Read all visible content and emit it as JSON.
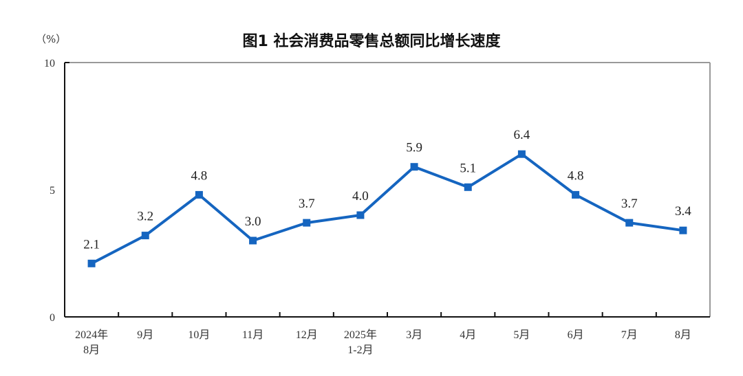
{
  "chart_data": {
    "type": "line",
    "title": "图1  社会消费品零售总额同比增长速度",
    "ylabel": "（%）",
    "xlabel": "",
    "categories": [
      [
        "2024年",
        "8月"
      ],
      [
        "9月"
      ],
      [
        "10月"
      ],
      [
        "11月"
      ],
      [
        "12月"
      ],
      [
        "2025年",
        "1-2月"
      ],
      [
        "3月"
      ],
      [
        "4月"
      ],
      [
        "5月"
      ],
      [
        "6月"
      ],
      [
        "7月"
      ],
      [
        "8月"
      ]
    ],
    "series": [
      {
        "values": [
          2.1,
          3.2,
          4.8,
          3.0,
          3.7,
          4.0,
          5.9,
          5.1,
          6.4,
          4.8,
          3.7,
          3.4
        ]
      }
    ],
    "data_labels": [
      "2.1",
      "3.2",
      "4.8",
      "3.0",
      "3.7",
      "4.0",
      "5.9",
      "5.1",
      "6.4",
      "4.8",
      "3.7",
      "3.4"
    ],
    "ylim": [
      0,
      10
    ],
    "yticks": [
      "0",
      "5",
      "10"
    ],
    "grid": false,
    "line_color": "#1565C0",
    "marker": "square"
  }
}
